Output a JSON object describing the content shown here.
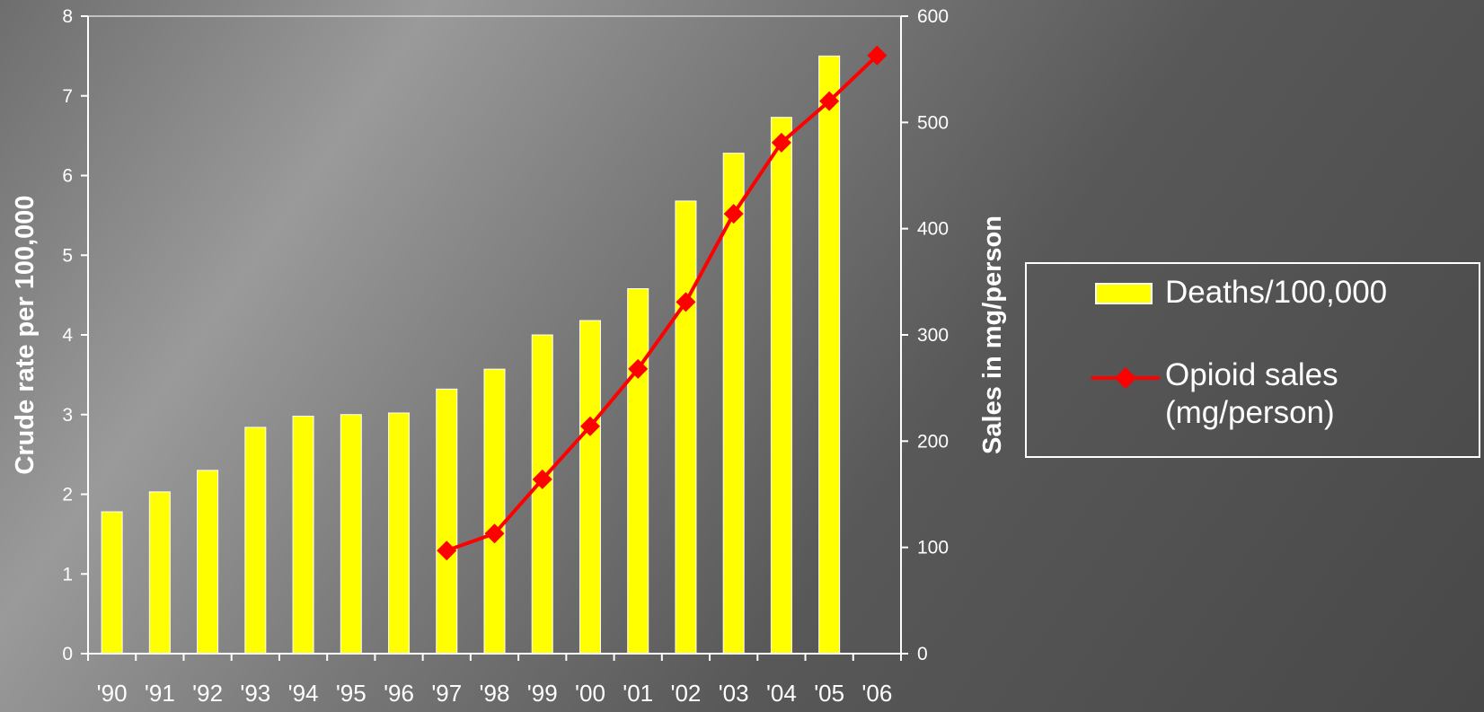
{
  "chart_data": {
    "type": "bar",
    "categories": [
      "'90",
      "'91",
      "'92",
      "'93",
      "'94",
      "'95",
      "'96",
      "'97",
      "'98",
      "'99",
      "'00",
      "'01",
      "'02",
      "'03",
      "'04",
      "'05",
      "'06"
    ],
    "series": [
      {
        "name": "Deaths/100,000",
        "type": "bar",
        "axis": "left",
        "color": "#ffff00",
        "values": [
          1.78,
          2.03,
          2.3,
          2.84,
          2.98,
          3.0,
          3.02,
          3.32,
          3.57,
          4.0,
          4.18,
          4.58,
          5.68,
          6.28,
          6.73,
          7.5,
          null
        ]
      },
      {
        "name": "Opioid sales (mg/person)",
        "type": "line",
        "axis": "right",
        "color": "#ff0000",
        "values": [
          null,
          null,
          null,
          null,
          null,
          null,
          null,
          97,
          113,
          164,
          214,
          268,
          331,
          414,
          481,
          520,
          563
        ]
      }
    ],
    "ylabel": "Crude rate per 100,000",
    "y2label": "Sales in mg/person",
    "ylim": [
      0,
      8
    ],
    "y2lim": [
      0,
      600
    ],
    "yticks": [
      "0",
      "1",
      "2",
      "3",
      "4",
      "5",
      "6",
      "7",
      "8"
    ],
    "y2ticks": [
      "0",
      "100",
      "200",
      "300",
      "400",
      "500",
      "600"
    ],
    "grid": false,
    "legend_position": "right",
    "legend": {
      "bar_label": "Deaths/100,000",
      "line_label_1": "Opioid sales",
      "line_label_2": "(mg/person)"
    }
  }
}
